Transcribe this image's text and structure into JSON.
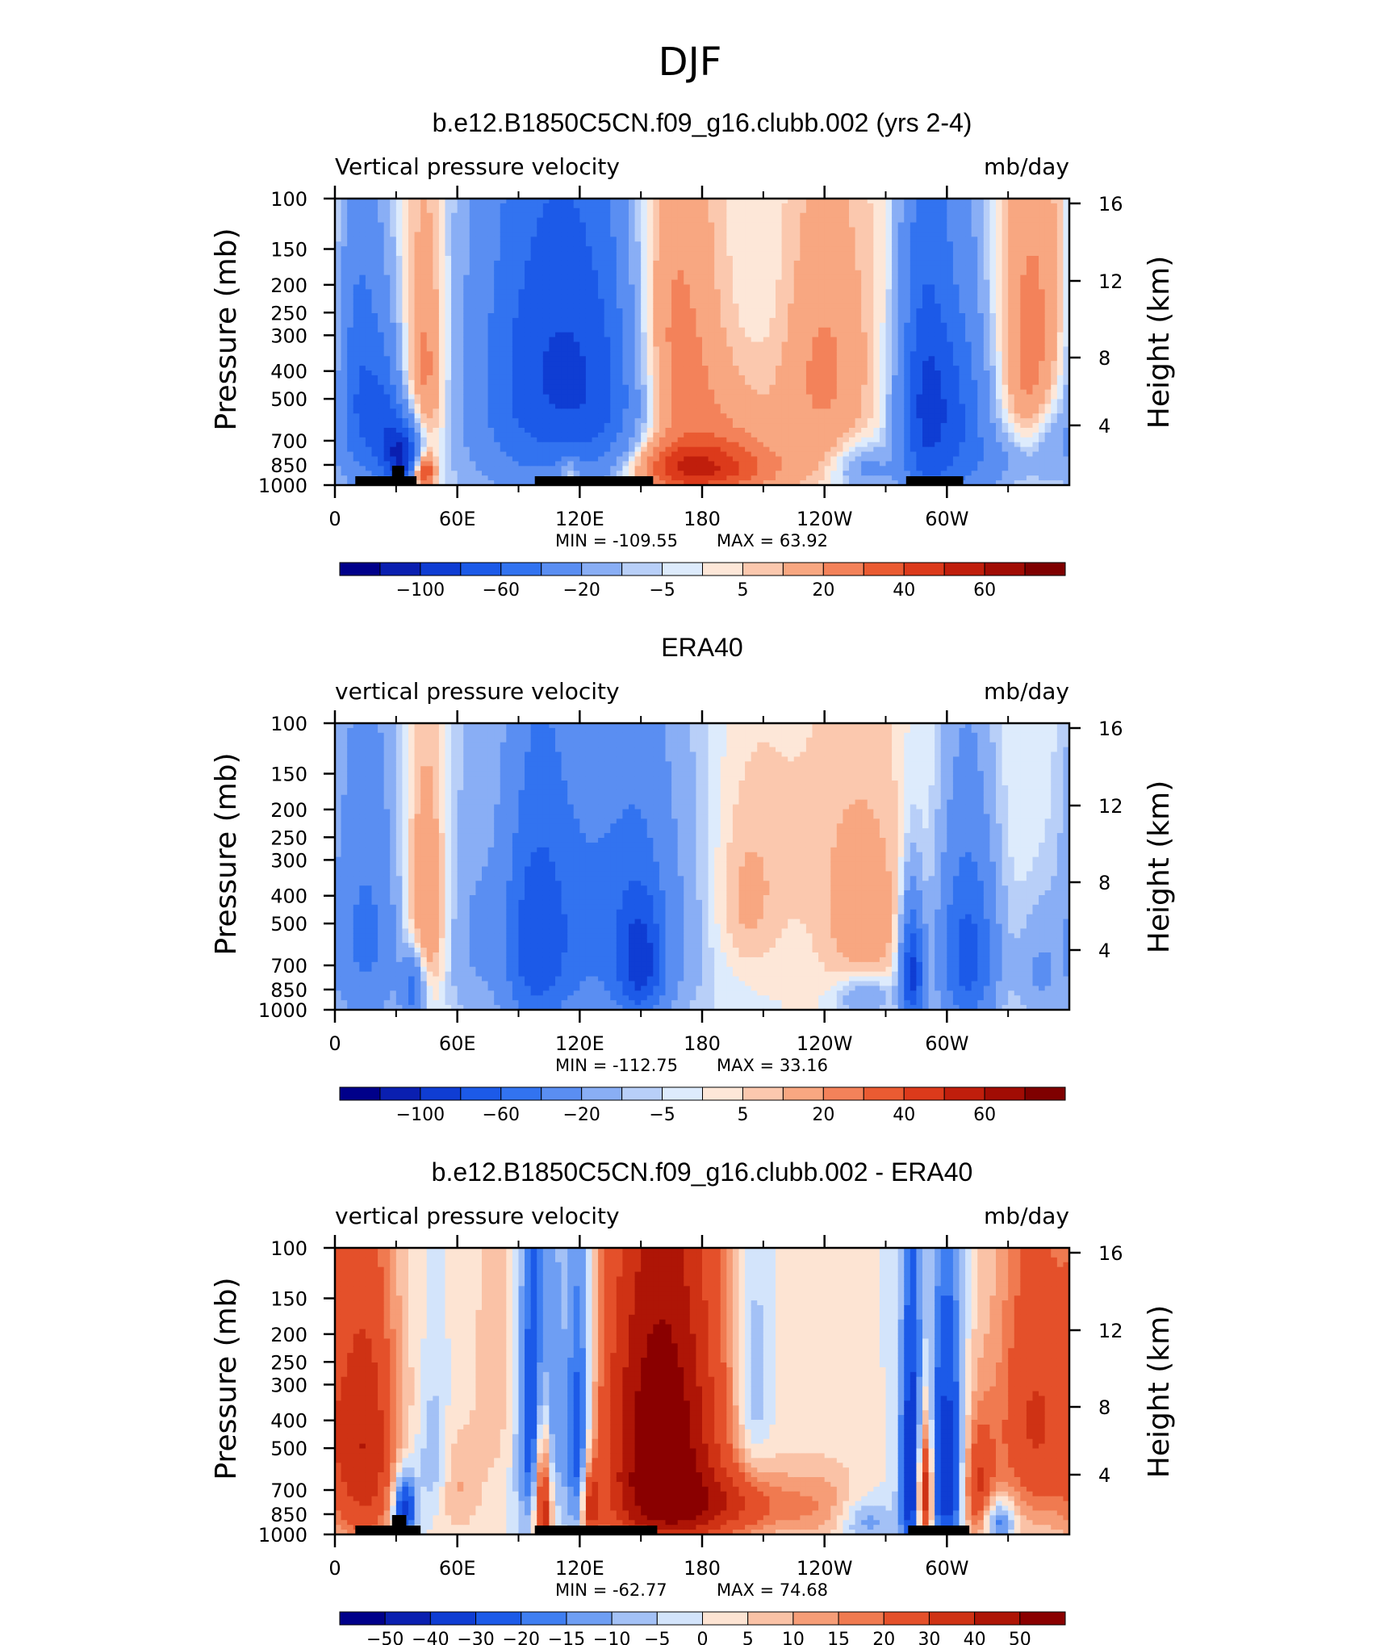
{
  "page_title": "DJF",
  "colors": {
    "frame": "#000000",
    "background": "#ffffff",
    "land_bar": "#000000"
  },
  "chart_data": [
    {
      "type": "heatmap",
      "title": "b.e12.B1850C5CN.f09_g16.clubb.002 (yrs 2-4)",
      "left_string": "Vertical pressure velocity",
      "right_string": "mb/day",
      "ylabel": "Pressure (mb)",
      "y2label": "Height (km)",
      "x_ticks": [
        "0",
        "60E",
        "120E",
        "180",
        "120W",
        "60W"
      ],
      "y_ticks": [
        "100",
        "150",
        "200",
        "250",
        "300",
        "400",
        "500",
        "700",
        "850",
        "1000"
      ],
      "y2_ticks": [
        "16",
        "12",
        "8",
        "4"
      ],
      "ylim": [
        1000,
        100
      ],
      "xlim": [
        0,
        360
      ],
      "min_label": "MIN = -109.55",
      "max_label": "MAX = 63.92",
      "min": -109.55,
      "max": 63.92,
      "colorbar_labels": [
        "-100",
        "-60",
        "-20",
        "-5",
        "5",
        "20",
        "40",
        "60"
      ],
      "land_bars": [
        [
          10,
          40
        ],
        [
          98,
          156
        ],
        [
          280,
          308
        ]
      ],
      "land_bumps": [
        [
          28,
          34
        ]
      ],
      "features": [
        {
          "lon": 12,
          "p": 500,
          "v": -60,
          "w": 8,
          "h": 350
        },
        {
          "lon": 25,
          "p": 650,
          "v": -50,
          "w": 6,
          "h": 260
        },
        {
          "lon": 34,
          "p": 800,
          "v": -90,
          "w": 6,
          "h": 150
        },
        {
          "lon": 43,
          "p": 900,
          "v": 60,
          "w": 4,
          "h": 90
        },
        {
          "lon": 45,
          "p": 400,
          "v": 28,
          "w": 7,
          "h": 260
        },
        {
          "lon": 85,
          "p": 500,
          "v": -28,
          "w": 22,
          "h": 450
        },
        {
          "lon": 110,
          "p": 380,
          "v": -60,
          "w": 22,
          "h": 380
        },
        {
          "lon": 135,
          "p": 550,
          "v": -38,
          "w": 16,
          "h": 400
        },
        {
          "lon": 115,
          "p": 900,
          "v": 30,
          "w": 3,
          "h": 90
        },
        {
          "lon": 175,
          "p": 880,
          "v": 42,
          "w": 30,
          "h": 140
        },
        {
          "lon": 175,
          "p": 500,
          "v": 22,
          "w": 25,
          "h": 380
        },
        {
          "lon": 160,
          "p": 250,
          "v": 14,
          "w": 14,
          "h": 220
        },
        {
          "lon": 200,
          "p": 220,
          "v": -8,
          "w": 18,
          "h": 180
        },
        {
          "lon": 240,
          "p": 400,
          "v": 22,
          "w": 16,
          "h": 280
        },
        {
          "lon": 260,
          "p": 880,
          "v": -25,
          "w": 10,
          "h": 110
        },
        {
          "lon": 288,
          "p": 520,
          "v": -65,
          "w": 9,
          "h": 450
        },
        {
          "lon": 305,
          "p": 550,
          "v": -55,
          "w": 12,
          "h": 420
        },
        {
          "lon": 330,
          "p": 820,
          "v": -20,
          "w": 14,
          "h": 150
        },
        {
          "lon": 342,
          "p": 380,
          "v": 26,
          "w": 12,
          "h": 300
        },
        {
          "lon": 352,
          "p": 700,
          "v": -20,
          "w": 7,
          "h": 200
        },
        {
          "lon": 300,
          "p": 180,
          "v": 8,
          "w": 20,
          "h": 120
        }
      ]
    },
    {
      "type": "heatmap",
      "title": "ERA40",
      "left_string": "vertical pressure velocity",
      "right_string": "mb/day",
      "ylabel": "Pressure (mb)",
      "y2label": "Height (km)",
      "x_ticks": [
        "0",
        "60E",
        "120E",
        "180",
        "120W",
        "60W"
      ],
      "y_ticks": [
        "100",
        "150",
        "200",
        "250",
        "300",
        "400",
        "500",
        "700",
        "850",
        "1000"
      ],
      "y2_ticks": [
        "16",
        "12",
        "8",
        "4"
      ],
      "ylim": [
        1000,
        100
      ],
      "xlim": [
        0,
        360
      ],
      "min_label": "MIN = -112.75",
      "max_label": "MAX = 33.16",
      "min": -112.75,
      "max": 33.16,
      "colorbar_labels": [
        "-100",
        "-60",
        "-20",
        "-5",
        "5",
        "20",
        "40",
        "60"
      ],
      "land_bars": [],
      "land_bumps": [],
      "features": [
        {
          "lon": 15,
          "p": 550,
          "v": -45,
          "w": 12,
          "h": 400
        },
        {
          "lon": 38,
          "p": 850,
          "v": -50,
          "w": 4,
          "h": 150
        },
        {
          "lon": 45,
          "p": 450,
          "v": 24,
          "w": 8,
          "h": 280
        },
        {
          "lon": 65,
          "p": 550,
          "v": -18,
          "w": 10,
          "h": 380
        },
        {
          "lon": 98,
          "p": 600,
          "v": -60,
          "w": 12,
          "h": 400
        },
        {
          "lon": 135,
          "p": 500,
          "v": -45,
          "w": 28,
          "h": 450
        },
        {
          "lon": 150,
          "p": 700,
          "v": -60,
          "w": 8,
          "h": 250
        },
        {
          "lon": 200,
          "p": 450,
          "v": 12,
          "w": 12,
          "h": 200
        },
        {
          "lon": 260,
          "p": 500,
          "v": 15,
          "w": 16,
          "h": 300
        },
        {
          "lon": 283,
          "p": 750,
          "v": -90,
          "w": 4,
          "h": 250
        },
        {
          "lon": 260,
          "p": 900,
          "v": -25,
          "w": 10,
          "h": 100
        },
        {
          "lon": 310,
          "p": 650,
          "v": -70,
          "w": 10,
          "h": 350
        },
        {
          "lon": 345,
          "p": 750,
          "v": -20,
          "w": 8,
          "h": 250
        },
        {
          "lon": 220,
          "p": 250,
          "v": 5,
          "w": 25,
          "h": 200
        }
      ]
    },
    {
      "type": "heatmap",
      "title": "b.e12.B1850C5CN.f09_g16.clubb.002 - ERA40",
      "left_string": "vertical pressure velocity",
      "right_string": "mb/day",
      "ylabel": "Pressure (mb)",
      "y2label": "Height (km)",
      "x_ticks": [
        "0",
        "60E",
        "120E",
        "180",
        "120W",
        "60W"
      ],
      "y_ticks": [
        "100",
        "150",
        "200",
        "250",
        "300",
        "400",
        "500",
        "700",
        "850",
        "1000"
      ],
      "y2_ticks": [
        "16",
        "12",
        "8",
        "4"
      ],
      "ylim": [
        1000,
        100
      ],
      "xlim": [
        0,
        360
      ],
      "min_label": "MIN = -62.77",
      "max_label": "MAX = 74.68",
      "min": -62.77,
      "max": 74.68,
      "colorbar_labels": [
        "-50",
        "-40",
        "-30",
        "-20",
        "-15",
        "-10",
        "-5",
        "0",
        "5",
        "10",
        "15",
        "20",
        "30",
        "40",
        "50"
      ],
      "land_bars": [
        [
          10,
          42
        ],
        [
          98,
          158
        ],
        [
          281,
          311
        ]
      ],
      "land_bumps": [
        [
          28,
          35
        ]
      ],
      "features": [
        {
          "lon": 15,
          "p": 500,
          "v": 38,
          "w": 12,
          "h": 400
        },
        {
          "lon": 34,
          "p": 800,
          "v": -40,
          "w": 4,
          "h": 150
        },
        {
          "lon": 48,
          "p": 550,
          "v": -12,
          "w": 5,
          "h": 200
        },
        {
          "lon": 60,
          "p": 700,
          "v": 10,
          "w": 8,
          "h": 200
        },
        {
          "lon": 100,
          "p": 400,
          "v": -38,
          "w": 7,
          "h": 380
        },
        {
          "lon": 102,
          "p": 750,
          "v": 55,
          "w": 3,
          "h": 350
        },
        {
          "lon": 120,
          "p": 500,
          "v": -35,
          "w": 5,
          "h": 400
        },
        {
          "lon": 125,
          "p": 800,
          "v": 35,
          "w": 3,
          "h": 200
        },
        {
          "lon": 160,
          "p": 450,
          "v": 60,
          "w": 22,
          "h": 450
        },
        {
          "lon": 185,
          "p": 800,
          "v": 25,
          "w": 30,
          "h": 150
        },
        {
          "lon": 205,
          "p": 300,
          "v": -15,
          "w": 6,
          "h": 180
        },
        {
          "lon": 240,
          "p": 800,
          "v": 10,
          "w": 15,
          "h": 200
        },
        {
          "lon": 283,
          "p": 600,
          "v": -45,
          "w": 4,
          "h": 400
        },
        {
          "lon": 289,
          "p": 700,
          "v": 55,
          "w": 3,
          "h": 250
        },
        {
          "lon": 300,
          "p": 600,
          "v": -40,
          "w": 6,
          "h": 400
        },
        {
          "lon": 315,
          "p": 700,
          "v": 30,
          "w": 6,
          "h": 250
        },
        {
          "lon": 342,
          "p": 400,
          "v": 30,
          "w": 14,
          "h": 350
        },
        {
          "lon": 325,
          "p": 900,
          "v": -25,
          "w": 6,
          "h": 120
        },
        {
          "lon": 260,
          "p": 900,
          "v": -15,
          "w": 10,
          "h": 120
        },
        {
          "lon": 80,
          "p": 250,
          "v": 8,
          "w": 10,
          "h": 300
        }
      ]
    }
  ]
}
